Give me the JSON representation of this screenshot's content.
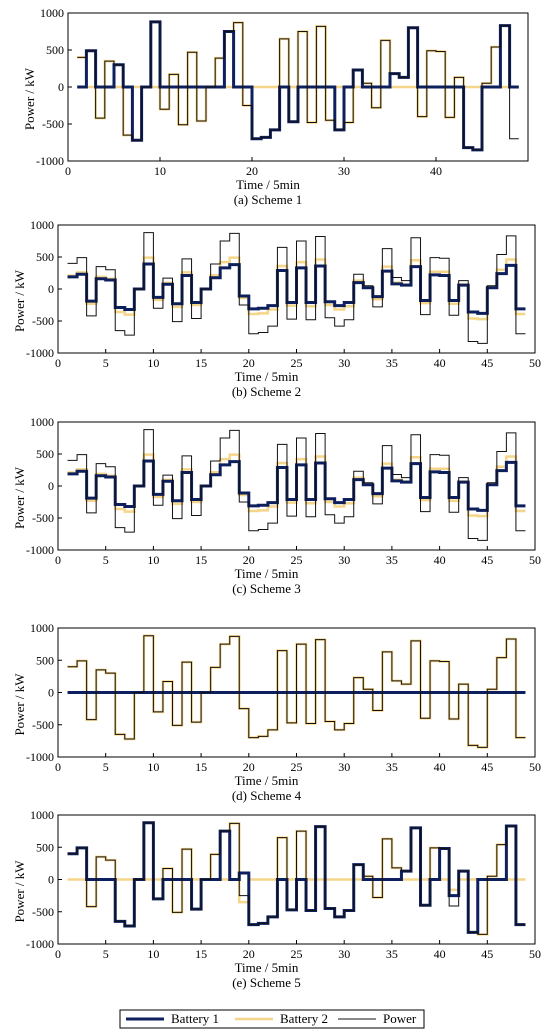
{
  "legend": {
    "entries": [
      {
        "label": "Battery 1",
        "color": "#0d1f5c"
      },
      {
        "label": "Battery 2",
        "color": "#f5d58a"
      },
      {
        "label": "Power",
        "color": "#111111"
      }
    ]
  },
  "chart_data": [
    {
      "type": "line",
      "caption": "(a) Scheme 1",
      "xlabel": "Time / 5min",
      "ylabel": "Power / kW",
      "xlim": [
        0,
        50
      ],
      "ylim": [
        -1000,
        1000
      ],
      "xticks": [
        0,
        10,
        20,
        30,
        40
      ],
      "yticks": [
        1000,
        500,
        0,
        -500,
        -1000
      ],
      "x": [
        1,
        2,
        3,
        4,
        5,
        6,
        7,
        8,
        9,
        10,
        11,
        12,
        13,
        14,
        15,
        16,
        17,
        18,
        19,
        20,
        21,
        22,
        23,
        24,
        25,
        26,
        27,
        28,
        29,
        30,
        31,
        32,
        33,
        34,
        35,
        36,
        37,
        38,
        39,
        40,
        41,
        42,
        43,
        44,
        45,
        46,
        47,
        48
      ],
      "series": [
        {
          "name": "Power",
          "values": [
            400,
            490,
            -420,
            350,
            300,
            -650,
            -720,
            0,
            880,
            -300,
            170,
            -510,
            470,
            -460,
            0,
            390,
            750,
            870,
            -250,
            -700,
            -680,
            -580,
            650,
            -470,
            750,
            -480,
            820,
            -450,
            -580,
            -480,
            230,
            50,
            -280,
            630,
            180,
            130,
            800,
            -400,
            490,
            480,
            -410,
            130,
            -820,
            -850,
            50,
            540,
            830,
            -700
          ]
        },
        {
          "name": "Battery 1",
          "values": [
            0,
            490,
            0,
            0,
            300,
            0,
            -720,
            0,
            880,
            0,
            0,
            0,
            0,
            0,
            0,
            0,
            750,
            0,
            0,
            -700,
            -680,
            -580,
            0,
            -470,
            0,
            0,
            0,
            0,
            -580,
            0,
            230,
            0,
            0,
            0,
            180,
            130,
            800,
            0,
            0,
            0,
            0,
            0,
            -820,
            -850,
            0,
            0,
            830,
            0
          ]
        },
        {
          "name": "Battery 2",
          "values": [
            400,
            0,
            -420,
            350,
            0,
            -650,
            0,
            0,
            0,
            -300,
            170,
            -510,
            470,
            -460,
            0,
            390,
            0,
            870,
            -250,
            0,
            0,
            0,
            650,
            0,
            750,
            -480,
            820,
            -450,
            0,
            -480,
            0,
            50,
            -280,
            630,
            0,
            0,
            0,
            -400,
            490,
            480,
            -410,
            130,
            0,
            0,
            50,
            540,
            0,
            0
          ]
        }
      ]
    },
    {
      "type": "line",
      "caption": "(b) Scheme 2",
      "xlabel": "Time / 5min",
      "ylabel": "Power / kW",
      "xlim": [
        0,
        50
      ],
      "ylim": [
        -1000,
        1000
      ],
      "xticks": [
        0,
        5,
        10,
        15,
        20,
        25,
        30,
        35,
        40,
        45,
        50
      ],
      "yticks": [
        1000,
        500,
        0,
        -500,
        -1000
      ],
      "x": [
        1,
        2,
        3,
        4,
        5,
        6,
        7,
        8,
        9,
        10,
        11,
        12,
        13,
        14,
        15,
        16,
        17,
        18,
        19,
        20,
        21,
        22,
        23,
        24,
        25,
        26,
        27,
        28,
        29,
        30,
        31,
        32,
        33,
        34,
        35,
        36,
        37,
        38,
        39,
        40,
        41,
        42,
        43,
        44,
        45,
        46,
        47,
        48
      ],
      "series": [
        {
          "name": "Power",
          "values": [
            400,
            490,
            -420,
            350,
            300,
            -650,
            -720,
            0,
            880,
            -300,
            170,
            -510,
            470,
            -460,
            0,
            390,
            750,
            870,
            -250,
            -700,
            -680,
            -580,
            650,
            -470,
            750,
            -480,
            820,
            -450,
            -580,
            -480,
            230,
            50,
            -280,
            630,
            180,
            130,
            800,
            -400,
            490,
            480,
            -410,
            130,
            -820,
            -850,
            50,
            540,
            830,
            -700
          ]
        },
        {
          "name": "Battery 1",
          "values": [
            190,
            230,
            -190,
            160,
            140,
            -290,
            -320,
            0,
            390,
            -130,
            75,
            -230,
            210,
            -210,
            0,
            175,
            330,
            380,
            -110,
            -310,
            -300,
            -260,
            290,
            -210,
            330,
            -210,
            360,
            -200,
            -260,
            -210,
            100,
            20,
            -120,
            280,
            80,
            60,
            350,
            -180,
            220,
            210,
            -180,
            60,
            -360,
            -380,
            20,
            240,
            370,
            -310
          ]
        },
        {
          "name": "Battery 2",
          "values": [
            210,
            260,
            -230,
            190,
            160,
            -360,
            -400,
            0,
            490,
            -170,
            95,
            -280,
            260,
            -250,
            0,
            215,
            420,
            490,
            -140,
            -390,
            -380,
            -320,
            360,
            -260,
            420,
            -270,
            460,
            -250,
            -320,
            -270,
            130,
            30,
            -160,
            350,
            100,
            70,
            450,
            -220,
            270,
            270,
            -230,
            70,
            -460,
            -470,
            30,
            300,
            460,
            -390
          ]
        }
      ]
    },
    {
      "type": "line",
      "caption": "(c) Scheme 3",
      "xlabel": "Time / 5min",
      "ylabel": "Power / kW",
      "xlim": [
        0,
        50
      ],
      "ylim": [
        -1000,
        1000
      ],
      "xticks": [
        0,
        5,
        10,
        15,
        20,
        25,
        30,
        35,
        40,
        45,
        50
      ],
      "yticks": [
        1000,
        500,
        0,
        -500,
        -1000
      ],
      "x": [
        1,
        2,
        3,
        4,
        5,
        6,
        7,
        8,
        9,
        10,
        11,
        12,
        13,
        14,
        15,
        16,
        17,
        18,
        19,
        20,
        21,
        22,
        23,
        24,
        25,
        26,
        27,
        28,
        29,
        30,
        31,
        32,
        33,
        34,
        35,
        36,
        37,
        38,
        39,
        40,
        41,
        42,
        43,
        44,
        45,
        46,
        47,
        48
      ],
      "series": [
        {
          "name": "Power",
          "values": [
            400,
            490,
            -420,
            350,
            300,
            -650,
            -720,
            0,
            880,
            -300,
            170,
            -510,
            470,
            -460,
            0,
            390,
            750,
            870,
            -250,
            -700,
            -680,
            -580,
            650,
            -470,
            750,
            -480,
            820,
            -450,
            -580,
            -480,
            230,
            50,
            -280,
            630,
            180,
            130,
            800,
            -400,
            490,
            480,
            -410,
            130,
            -820,
            -850,
            50,
            540,
            830,
            -700
          ]
        },
        {
          "name": "Battery 1",
          "values": [
            190,
            230,
            -190,
            160,
            140,
            -290,
            -320,
            0,
            390,
            -130,
            75,
            -230,
            210,
            -210,
            0,
            175,
            330,
            380,
            -110,
            -310,
            -300,
            -260,
            290,
            -210,
            330,
            -210,
            360,
            -200,
            -260,
            -210,
            100,
            20,
            -120,
            280,
            80,
            60,
            350,
            -180,
            220,
            210,
            -180,
            60,
            -360,
            -380,
            20,
            240,
            370,
            -310
          ]
        },
        {
          "name": "Battery 2",
          "values": [
            210,
            260,
            -230,
            190,
            160,
            -360,
            -400,
            0,
            490,
            -170,
            95,
            -280,
            260,
            -250,
            0,
            215,
            420,
            490,
            -140,
            -390,
            -380,
            -320,
            360,
            -260,
            420,
            -270,
            460,
            -250,
            -320,
            -270,
            130,
            30,
            -160,
            350,
            100,
            70,
            450,
            -220,
            270,
            270,
            -230,
            70,
            -460,
            -470,
            30,
            300,
            460,
            -390
          ]
        }
      ]
    },
    {
      "type": "line",
      "caption": "(d) Scheme 4",
      "xlabel": "Time / 5min",
      "ylabel": "Power / kW",
      "xlim": [
        0,
        50
      ],
      "ylim": [
        -1000,
        1000
      ],
      "xticks": [
        0,
        5,
        10,
        15,
        20,
        25,
        30,
        35,
        40,
        45,
        50
      ],
      "yticks": [
        1000,
        500,
        0,
        -500,
        -1000
      ],
      "x": [
        1,
        2,
        3,
        4,
        5,
        6,
        7,
        8,
        9,
        10,
        11,
        12,
        13,
        14,
        15,
        16,
        17,
        18,
        19,
        20,
        21,
        22,
        23,
        24,
        25,
        26,
        27,
        28,
        29,
        30,
        31,
        32,
        33,
        34,
        35,
        36,
        37,
        38,
        39,
        40,
        41,
        42,
        43,
        44,
        45,
        46,
        47,
        48
      ],
      "series": [
        {
          "name": "Power",
          "values": [
            400,
            490,
            -420,
            350,
            300,
            -650,
            -720,
            0,
            880,
            -300,
            170,
            -510,
            470,
            -460,
            0,
            390,
            750,
            870,
            -250,
            -700,
            -680,
            -580,
            650,
            -470,
            750,
            -480,
            820,
            -450,
            -580,
            -480,
            230,
            50,
            -280,
            630,
            180,
            130,
            800,
            -400,
            490,
            480,
            -410,
            130,
            -820,
            -850,
            50,
            540,
            830,
            -700
          ]
        },
        {
          "name": "Battery 1",
          "values": [
            0,
            0,
            0,
            0,
            0,
            0,
            0,
            0,
            0,
            0,
            0,
            0,
            0,
            0,
            0,
            0,
            0,
            0,
            0,
            0,
            0,
            0,
            0,
            0,
            0,
            0,
            0,
            0,
            0,
            0,
            0,
            0,
            0,
            0,
            0,
            0,
            0,
            0,
            0,
            0,
            0,
            0,
            0,
            0,
            0,
            0,
            0,
            0
          ]
        },
        {
          "name": "Battery 2",
          "values": [
            400,
            490,
            -420,
            350,
            300,
            -650,
            -720,
            0,
            880,
            -300,
            170,
            -510,
            470,
            -460,
            0,
            390,
            750,
            870,
            -250,
            -700,
            -680,
            -580,
            650,
            -470,
            750,
            -480,
            820,
            -450,
            -580,
            -480,
            230,
            50,
            -280,
            630,
            180,
            130,
            800,
            -400,
            490,
            480,
            -410,
            130,
            -820,
            -850,
            50,
            540,
            830,
            -700
          ]
        }
      ]
    },
    {
      "type": "line",
      "caption": "(e) Scheme 5",
      "xlabel": "Time / 5min",
      "ylabel": "Power / kW",
      "xlim": [
        0,
        50
      ],
      "ylim": [
        -1000,
        1000
      ],
      "xticks": [
        0,
        5,
        10,
        15,
        20,
        25,
        30,
        35,
        40,
        45,
        50
      ],
      "yticks": [
        1000,
        500,
        0,
        -500,
        -1000
      ],
      "x": [
        1,
        2,
        3,
        4,
        5,
        6,
        7,
        8,
        9,
        10,
        11,
        12,
        13,
        14,
        15,
        16,
        17,
        18,
        19,
        20,
        21,
        22,
        23,
        24,
        25,
        26,
        27,
        28,
        29,
        30,
        31,
        32,
        33,
        34,
        35,
        36,
        37,
        38,
        39,
        40,
        41,
        42,
        43,
        44,
        45,
        46,
        47,
        48
      ],
      "series": [
        {
          "name": "Power",
          "values": [
            400,
            490,
            -420,
            350,
            300,
            -650,
            -720,
            0,
            880,
            -300,
            170,
            -510,
            470,
            -460,
            0,
            390,
            750,
            870,
            -250,
            -700,
            -680,
            -580,
            650,
            -470,
            750,
            -480,
            820,
            -450,
            -580,
            -480,
            230,
            50,
            -280,
            630,
            180,
            130,
            800,
            -400,
            490,
            480,
            -410,
            130,
            -820,
            -850,
            50,
            540,
            830,
            -700
          ]
        },
        {
          "name": "Battery 1",
          "values": [
            400,
            490,
            0,
            0,
            0,
            -650,
            -720,
            0,
            880,
            -300,
            0,
            0,
            0,
            -460,
            0,
            0,
            750,
            0,
            100,
            -700,
            -680,
            -580,
            0,
            -470,
            0,
            -480,
            820,
            -450,
            -580,
            -480,
            230,
            0,
            0,
            0,
            0,
            130,
            800,
            -400,
            0,
            480,
            -250,
            130,
            -820,
            0,
            0,
            0,
            830,
            -700
          ]
        },
        {
          "name": "Battery 2",
          "values": [
            0,
            0,
            -420,
            350,
            300,
            0,
            0,
            0,
            0,
            0,
            170,
            -510,
            470,
            0,
            0,
            390,
            0,
            870,
            -350,
            0,
            0,
            0,
            650,
            0,
            750,
            0,
            0,
            0,
            0,
            0,
            0,
            50,
            -280,
            630,
            180,
            0,
            0,
            0,
            490,
            0,
            -160,
            0,
            0,
            -850,
            50,
            540,
            0,
            0
          ]
        }
      ]
    }
  ]
}
